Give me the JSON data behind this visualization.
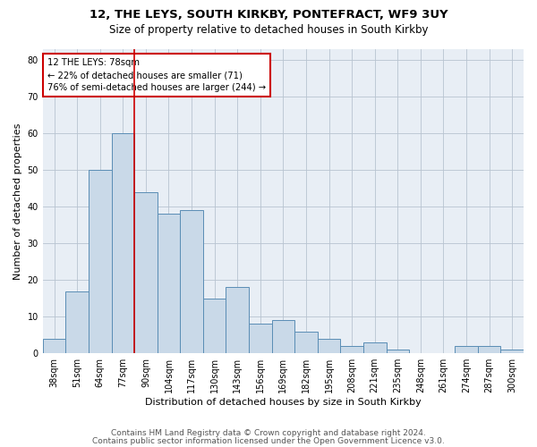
{
  "title1": "12, THE LEYS, SOUTH KIRKBY, PONTEFRACT, WF9 3UY",
  "title2": "Size of property relative to detached houses in South Kirkby",
  "xlabel": "Distribution of detached houses by size in South Kirkby",
  "ylabel": "Number of detached properties",
  "footer1": "Contains HM Land Registry data © Crown copyright and database right 2024.",
  "footer2": "Contains public sector information licensed under the Open Government Licence v3.0.",
  "categories": [
    "38sqm",
    "51sqm",
    "64sqm",
    "77sqm",
    "90sqm",
    "104sqm",
    "117sqm",
    "130sqm",
    "143sqm",
    "156sqm",
    "169sqm",
    "182sqm",
    "195sqm",
    "208sqm",
    "221sqm",
    "235sqm",
    "248sqm",
    "261sqm",
    "274sqm",
    "287sqm",
    "300sqm"
  ],
  "values": [
    4,
    17,
    50,
    60,
    44,
    38,
    39,
    15,
    18,
    8,
    9,
    6,
    4,
    2,
    3,
    1,
    0,
    0,
    2,
    2,
    1
  ],
  "bar_color": "#c9d9e8",
  "bar_edge_color": "#5a8db5",
  "vline_color": "#cc0000",
  "vline_x_index": 3.5,
  "annotation_line1": "12 THE LEYS: 78sqm",
  "annotation_line2": "← 22% of detached houses are smaller (71)",
  "annotation_line3": "76% of semi-detached houses are larger (244) →",
  "annotation_box_color": "white",
  "annotation_box_edge": "#cc0000",
  "ylim": [
    0,
    83
  ],
  "yticks": [
    0,
    10,
    20,
    30,
    40,
    50,
    60,
    70,
    80
  ],
  "grid_color": "#b8c4d0",
  "bg_color": "#e8eef5",
  "title_fontsize": 9.5,
  "subtitle_fontsize": 8.5,
  "tick_fontsize": 7,
  "label_fontsize": 8,
  "footer_fontsize": 6.5
}
